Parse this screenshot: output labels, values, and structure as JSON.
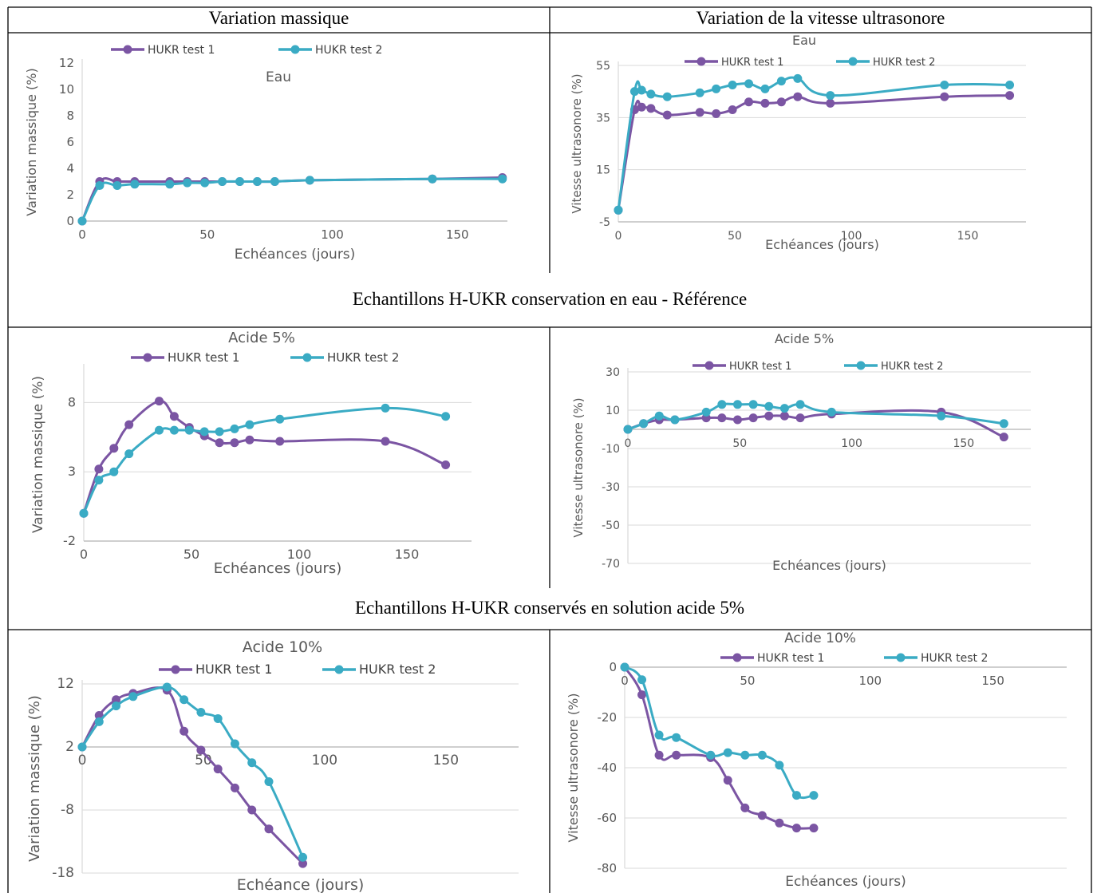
{
  "table": {
    "col1_header": "Variation massique",
    "col2_header": "Variation de la vitesse ultrasonore",
    "captions": [
      "Echantillons H-UKR conservation en eau - Référence",
      "Echantillons H-UKR conservés en solution acide 5%"
    ]
  },
  "colors": {
    "series1": "#7b55a3",
    "series2": "#3aabc4",
    "grid": "#d9d9d9",
    "text": "#595959"
  },
  "chart_data": [
    {
      "type": "line",
      "title": "Eau",
      "xlabel": "Echéances (jours)",
      "ylabel": "Variation massique (%)",
      "xlim": [
        0,
        170
      ],
      "ylim": [
        0,
        12
      ],
      "xticks": [
        "0",
        "50",
        "100",
        "150"
      ],
      "yticks": [
        "0",
        "2",
        "4",
        "6",
        "8",
        "10",
        "12"
      ],
      "legend": "top",
      "series": [
        {
          "name": "HUKR test 1",
          "x": [
            0,
            7,
            14,
            21,
            35,
            42,
            49,
            56,
            63,
            70,
            77,
            91,
            140,
            168
          ],
          "y": [
            0,
            3.0,
            3.0,
            3.0,
            3.0,
            3.0,
            3.0,
            3.0,
            3.0,
            3.0,
            3.0,
            3.1,
            3.2,
            3.3
          ]
        },
        {
          "name": "HUKR test 2",
          "x": [
            0,
            7,
            14,
            21,
            35,
            42,
            49,
            56,
            63,
            70,
            77,
            91,
            140,
            168
          ],
          "y": [
            0,
            2.7,
            2.7,
            2.8,
            2.8,
            2.9,
            2.9,
            3.0,
            3.0,
            3.0,
            3.0,
            3.1,
            3.2,
            3.2
          ]
        }
      ]
    },
    {
      "type": "line",
      "title": "Eau",
      "xlabel": "Echéances (jours)",
      "ylabel": "Vitesse ultrasonore (%)",
      "xlim": [
        0,
        175
      ],
      "ylim": [
        -5,
        55
      ],
      "xticks": [
        "0",
        "50",
        "100",
        "150"
      ],
      "yticks": [
        "-5",
        "15",
        "35",
        "55"
      ],
      "legend": "top",
      "series": [
        {
          "name": "HUKR test 1",
          "x": [
            0,
            7,
            10,
            14,
            21,
            35,
            42,
            49,
            56,
            63,
            70,
            77,
            91,
            140,
            168
          ],
          "y": [
            -0.5,
            38,
            39,
            38.5,
            36,
            37,
            36.5,
            38,
            41,
            40.5,
            41,
            43,
            40.5,
            43,
            43.5
          ]
        },
        {
          "name": "HUKR test 2",
          "x": [
            0,
            7,
            10,
            14,
            21,
            35,
            42,
            49,
            56,
            63,
            70,
            77,
            91,
            140,
            168
          ],
          "y": [
            -0.5,
            45,
            45.5,
            44,
            43,
            44.5,
            46,
            47.5,
            48,
            46,
            49,
            50,
            43.5,
            47.5,
            47.5
          ]
        }
      ]
    },
    {
      "type": "line",
      "title": "Acide 5%",
      "xlabel": "Echéances (jours)",
      "ylabel": "Variation massique (%)",
      "xlim": [
        0,
        180
      ],
      "ylim": [
        -2,
        10.5
      ],
      "xticks": [
        "0",
        "50",
        "100",
        "150"
      ],
      "yticks": [
        "-2",
        "3",
        "8"
      ],
      "legend": "top",
      "series": [
        {
          "name": "HUKR test 1",
          "x": [
            0,
            7,
            14,
            21,
            35,
            42,
            49,
            56,
            63,
            70,
            77,
            91,
            140,
            168
          ],
          "y": [
            0,
            3.2,
            4.7,
            6.4,
            8.1,
            7.0,
            6.2,
            5.6,
            5.1,
            5.1,
            5.3,
            5.2,
            5.2,
            3.5
          ]
        },
        {
          "name": "HUKR test 2",
          "x": [
            0,
            7,
            14,
            21,
            35,
            42,
            49,
            56,
            63,
            70,
            77,
            91,
            140,
            168
          ],
          "y": [
            0,
            2.4,
            3.0,
            4.3,
            6.0,
            6.0,
            6.0,
            5.9,
            5.9,
            6.1,
            6.4,
            6.8,
            7.6,
            7.0
          ]
        }
      ]
    },
    {
      "type": "line",
      "title": "Acide 5%",
      "xlabel": "Echéances (jours)",
      "ylabel": "Vitesse ultrasonore (%)",
      "xlim": [
        0,
        180
      ],
      "ylim": [
        -70,
        30
      ],
      "xticks": [
        "0",
        "50",
        "100",
        "150"
      ],
      "yticks": [
        "-70",
        "-50",
        "-30",
        "-10",
        "10",
        "30"
      ],
      "legend": "top",
      "series": [
        {
          "name": "HUKR test 1",
          "x": [
            0,
            7,
            14,
            21,
            35,
            42,
            49,
            56,
            63,
            70,
            77,
            91,
            140,
            168
          ],
          "y": [
            0,
            3,
            5,
            5,
            6,
            6,
            5,
            6,
            7,
            7,
            6,
            8,
            9,
            -4
          ]
        },
        {
          "name": "HUKR test 2",
          "x": [
            0,
            7,
            14,
            21,
            35,
            42,
            49,
            56,
            63,
            70,
            77,
            91,
            140,
            168
          ],
          "y": [
            0,
            3,
            7,
            5,
            9,
            13,
            13,
            13,
            12,
            11,
            13,
            9,
            7,
            3
          ]
        }
      ]
    },
    {
      "type": "line",
      "title": "Acide 10%",
      "xlabel": "Echéance (jours)",
      "ylabel": "Variation massique (%)",
      "xlim": [
        0,
        180
      ],
      "ylim": [
        -18,
        12
      ],
      "xticks": [
        "0",
        "50",
        "100",
        "150"
      ],
      "yticks": [
        "-18",
        "-8",
        "2",
        "12"
      ],
      "legend": "top",
      "series": [
        {
          "name": "HUKR test 1",
          "x": [
            0,
            7,
            14,
            21,
            35,
            42,
            49,
            56,
            63,
            70,
            77,
            91
          ],
          "y": [
            2,
            7,
            9.5,
            10.5,
            11,
            4.5,
            1.5,
            -1.5,
            -4.5,
            -8,
            -11,
            -16.5
          ]
        },
        {
          "name": "HUKR test 2",
          "x": [
            0,
            7,
            14,
            21,
            35,
            42,
            49,
            56,
            63,
            70,
            77,
            91
          ],
          "y": [
            2,
            6,
            8.5,
            10,
            11.5,
            9.5,
            7.5,
            6.5,
            2.5,
            -0.5,
            -3.5,
            -15.5
          ]
        }
      ]
    },
    {
      "type": "line",
      "title": "Acide 10%",
      "xlabel": "Echéances (jours)",
      "ylabel": "Vitesse ultrasonore (%)",
      "xlim": [
        0,
        180
      ],
      "ylim": [
        -80,
        0
      ],
      "xticks": [
        "0",
        "50",
        "100",
        "150"
      ],
      "yticks": [
        "-80",
        "-60",
        "-40",
        "-20",
        "0"
      ],
      "legend": "top",
      "series": [
        {
          "name": "HUKR test 1",
          "x": [
            0,
            7,
            14,
            21,
            35,
            42,
            49,
            56,
            63,
            70,
            77
          ],
          "y": [
            0,
            -11,
            -35,
            -35,
            -36,
            -45,
            -56,
            -59,
            -62,
            -64,
            -64
          ]
        },
        {
          "name": "HUKR test 2",
          "x": [
            0,
            7,
            14,
            21,
            35,
            42,
            49,
            56,
            63,
            70,
            77
          ],
          "y": [
            0,
            -5,
            -27,
            -28,
            -35,
            -34,
            -35,
            -35,
            -39,
            -51,
            -51
          ]
        }
      ]
    }
  ]
}
